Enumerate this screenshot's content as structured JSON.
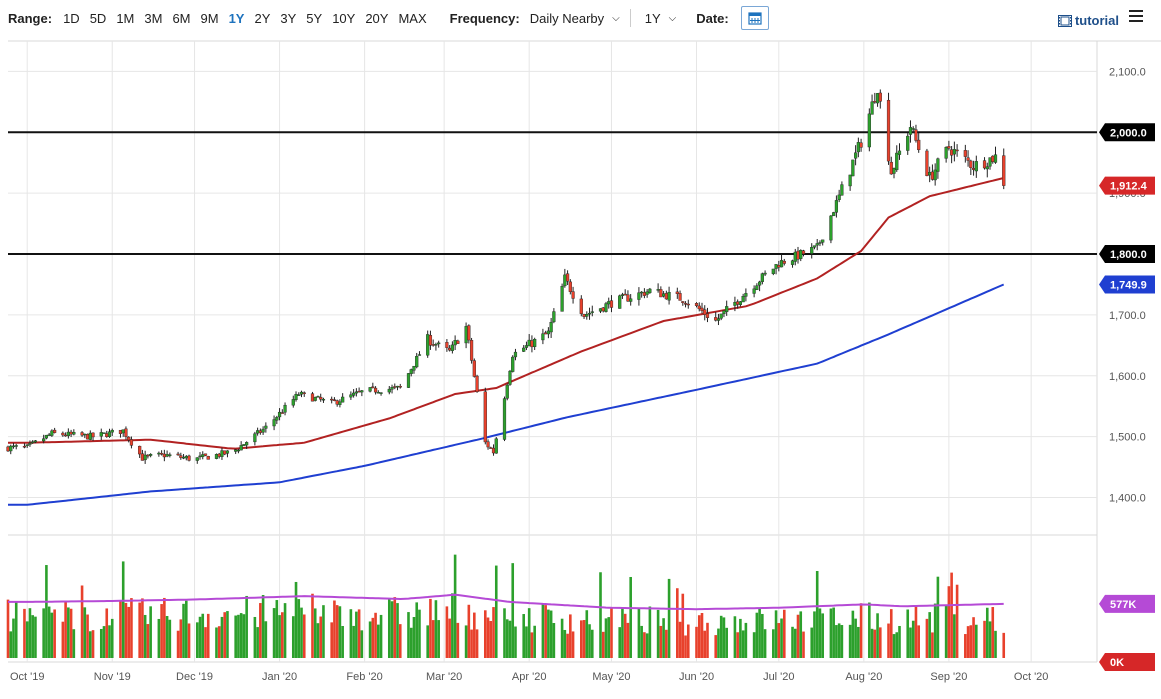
{
  "toolbar": {
    "range_label": "Range:",
    "ranges": [
      "1D",
      "5D",
      "1M",
      "3M",
      "6M",
      "9M",
      "1Y",
      "2Y",
      "3Y",
      "5Y",
      "10Y",
      "20Y",
      "MAX"
    ],
    "active_range": "1Y",
    "frequency_label": "Frequency:",
    "frequency_value": "Daily Nearby",
    "period_value": "1Y",
    "date_label": "Date:",
    "tutorial_label": "tutorial"
  },
  "colors": {
    "up": "#2ca02c",
    "down": "#e8412c",
    "ma_short": "#b22222",
    "ma_long": "#1f3fd1",
    "volume_avg": "#b54ad6",
    "axis_badge_dark": "#000000",
    "price_badge": "#d62728",
    "ma_long_badge": "#1f3fd1"
  },
  "chart_data": {
    "type": "candlestick",
    "x_ticks": [
      "Oct '19",
      "Nov '19",
      "Dec '19",
      "Jan '20",
      "Feb '20",
      "Mar '20",
      "Apr '20",
      "May '20",
      "Jun '20",
      "Jul '20",
      "Aug '20",
      "Sep '20",
      "Oct '20"
    ],
    "y_ticks": [
      "1,400.0",
      "1,500.0",
      "1,600.0",
      "1,700.0",
      "1,800.0",
      "1,900.0",
      "2,000.0",
      "2,100.0"
    ],
    "ylim": [
      1345,
      2150
    ],
    "horizontal_lines": [
      {
        "value": 2000,
        "label": "2,000.0"
      },
      {
        "value": 1800,
        "label": "1,800.0"
      }
    ],
    "last_price": {
      "value": 1912.4,
      "label": "1,912.4"
    },
    "ma_long_last": {
      "value": 1749.9,
      "label": "1,749.9"
    },
    "price_anchors": [
      [
        "2019-10-01",
        1482
      ],
      [
        "2019-10-10",
        1505
      ],
      [
        "2019-10-25",
        1500
      ],
      [
        "2019-11-05",
        1510
      ],
      [
        "2019-11-12",
        1465
      ],
      [
        "2019-11-20",
        1470
      ],
      [
        "2019-12-01",
        1463
      ],
      [
        "2019-12-15",
        1475
      ],
      [
        "2019-12-27",
        1515
      ],
      [
        "2020-01-08",
        1570
      ],
      [
        "2020-01-20",
        1555
      ],
      [
        "2020-02-01",
        1575
      ],
      [
        "2020-02-14",
        1580
      ],
      [
        "2020-02-24",
        1660
      ],
      [
        "2020-03-03",
        1640
      ],
      [
        "2020-03-09",
        1680
      ],
      [
        "2020-03-16",
        1490
      ],
      [
        "2020-03-19",
        1475
      ],
      [
        "2020-03-26",
        1635
      ],
      [
        "2020-04-08",
        1670
      ],
      [
        "2020-04-14",
        1760
      ],
      [
        "2020-04-21",
        1700
      ],
      [
        "2020-05-01",
        1720
      ],
      [
        "2020-05-15",
        1740
      ],
      [
        "2020-05-28",
        1725
      ],
      [
        "2020-06-08",
        1690
      ],
      [
        "2020-06-22",
        1750
      ],
      [
        "2020-07-01",
        1785
      ],
      [
        "2020-07-15",
        1810
      ],
      [
        "2020-07-24",
        1905
      ],
      [
        "2020-07-31",
        1985
      ],
      [
        "2020-08-06",
        2075
      ],
      [
        "2020-08-11",
        1935
      ],
      [
        "2020-08-18",
        2010
      ],
      [
        "2020-08-25",
        1925
      ],
      [
        "2020-09-01",
        1975
      ],
      [
        "2020-09-10",
        1945
      ],
      [
        "2020-09-18",
        1960
      ],
      [
        "2020-09-21",
        1912.4
      ]
    ],
    "ma_short_anchors": [
      [
        "2019-10-01",
        1490
      ],
      [
        "2019-11-15",
        1495
      ],
      [
        "2019-12-15",
        1480
      ],
      [
        "2020-01-10",
        1490
      ],
      [
        "2020-02-10",
        1530
      ],
      [
        "2020-03-05",
        1570
      ],
      [
        "2020-03-20",
        1580
      ],
      [
        "2020-04-20",
        1640
      ],
      [
        "2020-05-20",
        1690
      ],
      [
        "2020-06-20",
        1715
      ],
      [
        "2020-07-15",
        1760
      ],
      [
        "2020-07-31",
        1805
      ],
      [
        "2020-08-10",
        1860
      ],
      [
        "2020-08-25",
        1895
      ],
      [
        "2020-09-21",
        1925
      ]
    ],
    "ma_long_anchors": [
      [
        "2019-10-01",
        1388
      ],
      [
        "2019-11-15",
        1410
      ],
      [
        "2020-01-01",
        1425
      ],
      [
        "2020-02-01",
        1452
      ],
      [
        "2020-03-15",
        1497
      ],
      [
        "2020-04-15",
        1532
      ],
      [
        "2020-06-01",
        1577
      ],
      [
        "2020-07-15",
        1620
      ],
      [
        "2020-08-10",
        1668
      ],
      [
        "2020-09-21",
        1750
      ]
    ],
    "volume_badges": [
      "577K",
      "0K"
    ],
    "volume_ylim": [
      0,
      900
    ],
    "volume_avg_anchors": [
      [
        "2019-10-01",
        580
      ],
      [
        "2019-11-01",
        590
      ],
      [
        "2019-12-01",
        605
      ],
      [
        "2020-01-10",
        640
      ],
      [
        "2020-02-15",
        610
      ],
      [
        "2020-03-05",
        655
      ],
      [
        "2020-03-25",
        580
      ],
      [
        "2020-04-30",
        520
      ],
      [
        "2020-06-01",
        505
      ],
      [
        "2020-07-01",
        520
      ],
      [
        "2020-08-01",
        555
      ],
      [
        "2020-08-15",
        535
      ],
      [
        "2020-09-21",
        560
      ]
    ]
  }
}
